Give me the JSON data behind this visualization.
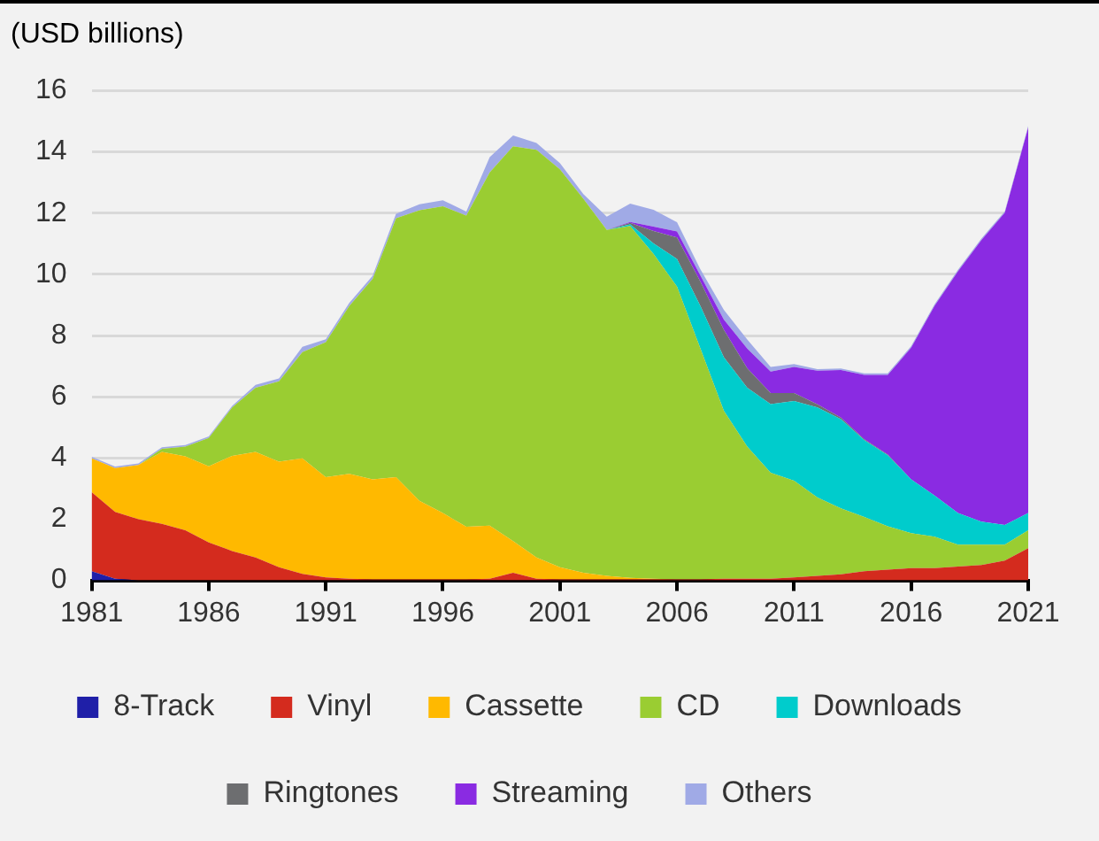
{
  "chart_data": {
    "type": "area",
    "stacked": true,
    "ylabel": "(USD billions)",
    "x": [
      1981,
      1982,
      1983,
      1984,
      1985,
      1986,
      1987,
      1988,
      1989,
      1990,
      1991,
      1992,
      1993,
      1994,
      1995,
      1996,
      1997,
      1998,
      1999,
      2000,
      2001,
      2002,
      2003,
      2004,
      2005,
      2006,
      2007,
      2008,
      2009,
      2010,
      2011,
      2012,
      2013,
      2014,
      2015,
      2016,
      2017,
      2018,
      2019,
      2020,
      2021
    ],
    "xlim": [
      1981,
      2021
    ],
    "xticks": [
      1981,
      1986,
      1991,
      1996,
      2001,
      2006,
      2011,
      2016,
      2021
    ],
    "ylim": [
      0,
      16
    ],
    "yticks": [
      0,
      2,
      4,
      6,
      8,
      10,
      12,
      14,
      16
    ],
    "grid": "y",
    "legend": "bottom",
    "series": [
      {
        "name": "8-Track",
        "color": "#1f1fa8",
        "values": [
          0.3,
          0.05,
          0,
          0,
          0,
          0,
          0,
          0,
          0,
          0,
          0,
          0,
          0,
          0,
          0,
          0,
          0,
          0,
          0,
          0,
          0,
          0,
          0,
          0,
          0,
          0,
          0,
          0,
          0,
          0,
          0,
          0,
          0,
          0,
          0,
          0,
          0,
          0,
          0,
          0,
          0
        ]
      },
      {
        "name": "Vinyl",
        "color": "#d42b1e",
        "values": [
          2.58,
          2.19,
          2.0,
          1.85,
          1.64,
          1.24,
          0.96,
          0.75,
          0.43,
          0.21,
          0.1,
          0.05,
          0.03,
          0.03,
          0.03,
          0.03,
          0.03,
          0.05,
          0.25,
          0.05,
          0.03,
          0.03,
          0.03,
          0.03,
          0.03,
          0.03,
          0.03,
          0.05,
          0.05,
          0.05,
          0.1,
          0.15,
          0.2,
          0.3,
          0.35,
          0.4,
          0.4,
          0.45,
          0.5,
          0.65,
          1.05
        ]
      },
      {
        "name": "Cassette",
        "color": "#ffb900",
        "values": [
          1.11,
          1.43,
          1.77,
          2.35,
          2.41,
          2.49,
          3.11,
          3.45,
          3.45,
          3.78,
          3.27,
          3.43,
          3.27,
          3.34,
          2.57,
          2.17,
          1.72,
          1.74,
          1.03,
          0.7,
          0.4,
          0.22,
          0.12,
          0.05,
          0.02,
          0,
          0,
          0,
          0,
          0,
          0,
          0,
          0,
          0,
          0,
          0,
          0,
          0,
          0,
          0,
          0
        ]
      },
      {
        "name": "CD",
        "color": "#9acd32",
        "values": [
          0,
          0,
          0,
          0.1,
          0.32,
          0.92,
          1.58,
          2.09,
          2.62,
          3.47,
          4.41,
          5.48,
          6.55,
          8.46,
          9.49,
          10.02,
          10.17,
          11.54,
          12.9,
          13.32,
          13.0,
          12.22,
          11.3,
          11.5,
          10.61,
          9.57,
          7.54,
          5.49,
          4.32,
          3.47,
          3.16,
          2.56,
          2.15,
          1.77,
          1.42,
          1.14,
          1.03,
          0.72,
          0.67,
          0.52,
          0.59
        ]
      },
      {
        "name": "Downloads",
        "color": "#00cccc",
        "values": [
          0,
          0,
          0,
          0,
          0,
          0,
          0,
          0,
          0,
          0,
          0,
          0,
          0,
          0,
          0,
          0,
          0,
          0,
          0,
          0,
          0,
          0,
          0,
          0.05,
          0.35,
          0.9,
          1.39,
          1.75,
          1.92,
          2.24,
          2.6,
          2.94,
          2.92,
          2.51,
          2.32,
          1.76,
          1.34,
          1.03,
          0.75,
          0.64,
          0.56
        ]
      },
      {
        "name": "Ringtones",
        "color": "#6d6e70",
        "values": [
          0,
          0,
          0,
          0,
          0,
          0,
          0,
          0,
          0,
          0,
          0,
          0,
          0,
          0,
          0,
          0,
          0,
          0,
          0,
          0,
          0,
          0,
          0,
          0.05,
          0.4,
          0.7,
          0.8,
          0.9,
          0.64,
          0.36,
          0.26,
          0.1,
          0.05,
          0.03,
          0.02,
          0,
          0,
          0,
          0,
          0,
          0
        ]
      },
      {
        "name": "Streaming",
        "color": "#8a2be2",
        "values": [
          0,
          0,
          0,
          0,
          0,
          0,
          0,
          0,
          0,
          0,
          0,
          0,
          0,
          0,
          0,
          0,
          0,
          0,
          0,
          0,
          0,
          0,
          0,
          0.03,
          0.15,
          0.2,
          0.2,
          0.33,
          0.64,
          0.7,
          0.85,
          1.1,
          1.55,
          2.1,
          2.6,
          4.3,
          6.2,
          7.9,
          9.2,
          10.2,
          12.6
        ]
      },
      {
        "name": "Others",
        "color": "#a0aae6",
        "values": [
          0.05,
          0.05,
          0.05,
          0.05,
          0.05,
          0.05,
          0.05,
          0.1,
          0.1,
          0.17,
          0.1,
          0.1,
          0.1,
          0.15,
          0.2,
          0.2,
          0.13,
          0.5,
          0.36,
          0.22,
          0.2,
          0.15,
          0.43,
          0.6,
          0.55,
          0.3,
          0.2,
          0.32,
          0.3,
          0.15,
          0.1,
          0.05,
          0.05,
          0.05,
          0.05,
          0.05,
          0.05,
          0.05,
          0.05,
          0.05,
          0.05
        ]
      }
    ]
  }
}
